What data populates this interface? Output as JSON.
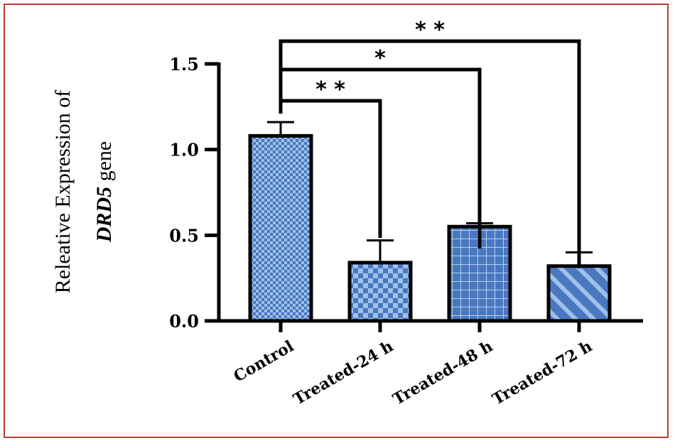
{
  "chart_data": {
    "type": "bar",
    "categories": [
      "Control",
      "Treated-24 h",
      "Treated-48 h",
      "Treated-72 h"
    ],
    "values": [
      1.08,
      0.34,
      0.55,
      0.32
    ],
    "errors": [
      0.08,
      0.13,
      0.02,
      0.08
    ],
    "ylim": [
      0,
      1.5
    ],
    "yticks": [
      "0.0",
      "0.5",
      "1.0",
      "1.5"
    ],
    "ylabel_line1": "Releative Expression of",
    "ylabel_gene": "DRD5",
    "ylabel_suffix": " gene",
    "bar_color": "#4a78bf",
    "patterns": [
      "checker-small",
      "checker-large",
      "grid",
      "diagonal"
    ],
    "significance": [
      {
        "from": "Control",
        "to": "Treated-24 h",
        "label": "* *"
      },
      {
        "from": "Control",
        "to": "Treated-48 h",
        "label": "*"
      },
      {
        "from": "Control",
        "to": "Treated-72 h",
        "label": "* *"
      }
    ],
    "grid": false,
    "legend": "none"
  }
}
